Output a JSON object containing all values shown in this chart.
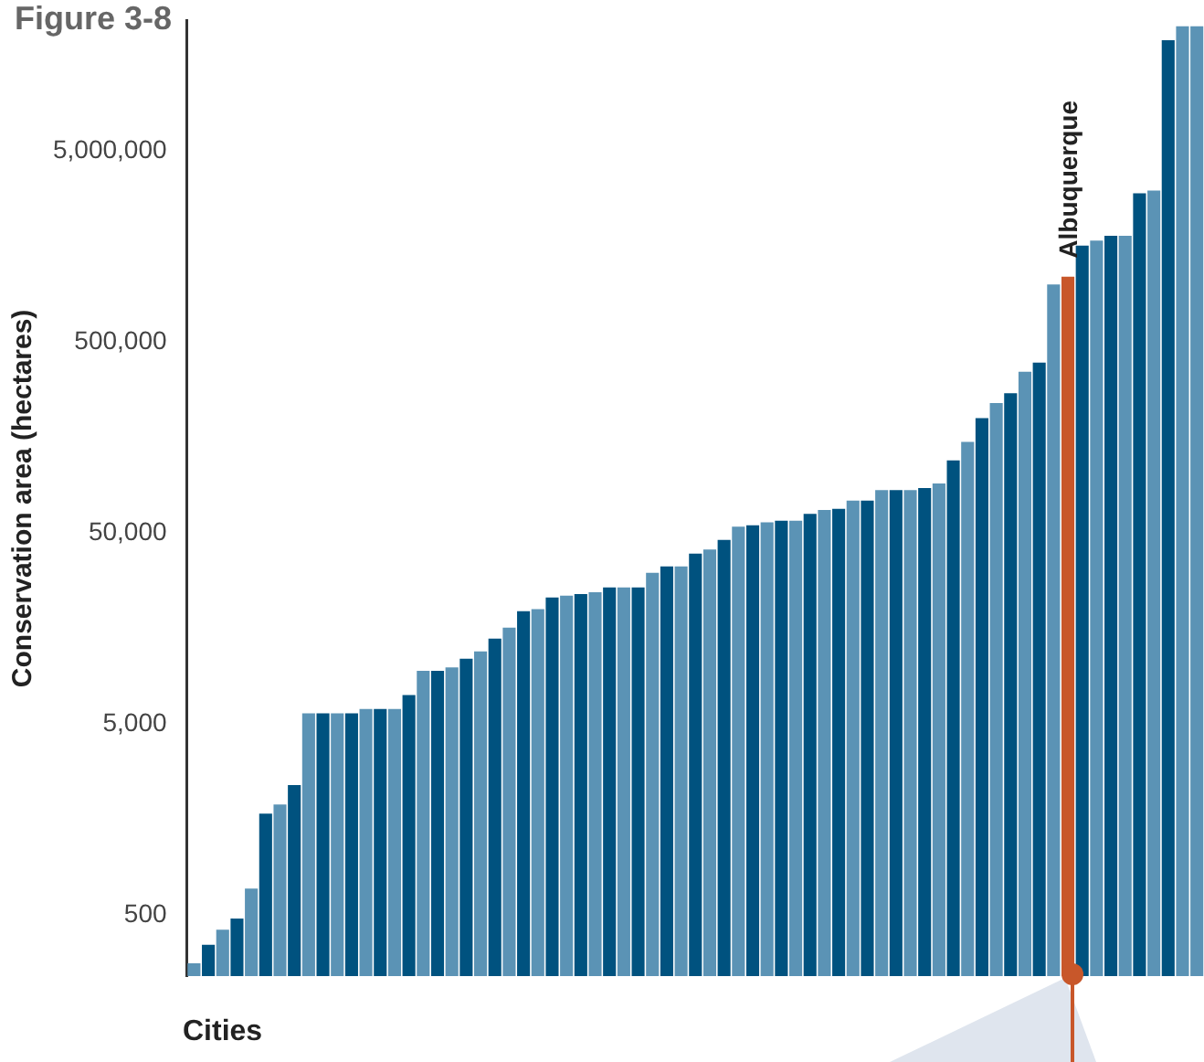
{
  "chart_data": {
    "type": "bar",
    "title": "Figure 3-8",
    "xlabel": "Cities",
    "ylabel": "Conservation area (hectares)",
    "log": "y",
    "grid": false,
    "legend": false,
    "categories": [
      null,
      null,
      null,
      null,
      null,
      null,
      null,
      null,
      null,
      null,
      null,
      null,
      null,
      null,
      null,
      null,
      null,
      null,
      null,
      null,
      null,
      null,
      null,
      null,
      null,
      null,
      null,
      null,
      null,
      null,
      null,
      null,
      null,
      null,
      null,
      null,
      null,
      null,
      null,
      null,
      null,
      null,
      null,
      null,
      null,
      null,
      null,
      null,
      null,
      null,
      null,
      null,
      null,
      null,
      null,
      null,
      null,
      null,
      null,
      null,
      null,
      "Albuquerque",
      null,
      null,
      null,
      null,
      null,
      null,
      null,
      null,
      null
    ],
    "values": [
      280,
      350,
      420,
      480,
      690,
      1700,
      1900,
      2400,
      5700,
      5700,
      5700,
      5700,
      6000,
      6000,
      6000,
      7100,
      9500,
      9500,
      9900,
      11000,
      12000,
      14000,
      16000,
      19500,
      20000,
      23000,
      23500,
      24000,
      24500,
      26000,
      26000,
      26000,
      31000,
      33500,
      33500,
      39000,
      41000,
      46000,
      54000,
      55000,
      57000,
      58000,
      58000,
      63000,
      66000,
      67000,
      74000,
      74000,
      84000,
      84000,
      84000,
      86000,
      91000,
      120000,
      150000,
      200000,
      240000,
      270000,
      350000,
      390000,
      1000000,
      1100000,
      1600000,
      1700000,
      1800000,
      1800000,
      3000000,
      3100000,
      19000000,
      22500000,
      22500000
    ],
    "colors": [
      "#5b93b5",
      "#00527f",
      "#5b93b5",
      "#00527f",
      "#5b93b5",
      "#00527f",
      "#5b93b5",
      "#00527f",
      "#5b93b5",
      "#00527f",
      "#5b93b5",
      "#00527f",
      "#5b93b5",
      "#00527f",
      "#5b93b5",
      "#00527f",
      "#5b93b5",
      "#00527f",
      "#5b93b5",
      "#00527f",
      "#5b93b5",
      "#00527f",
      "#5b93b5",
      "#00527f",
      "#5b93b5",
      "#00527f",
      "#5b93b5",
      "#00527f",
      "#5b93b5",
      "#00527f",
      "#5b93b5",
      "#00527f",
      "#5b93b5",
      "#00527f",
      "#5b93b5",
      "#00527f",
      "#5b93b5",
      "#00527f",
      "#5b93b5",
      "#00527f",
      "#5b93b5",
      "#00527f",
      "#5b93b5",
      "#00527f",
      "#5b93b5",
      "#00527f",
      "#5b93b5",
      "#00527f",
      "#5b93b5",
      "#00527f",
      "#5b93b5",
      "#00527f",
      "#5b93b5",
      "#00527f",
      "#5b93b5",
      "#00527f",
      "#5b93b5",
      "#00527f",
      "#5b93b5",
      "#00527f",
      "#5b93b5",
      "#c8572a",
      "#00527f",
      "#5b93b5",
      "#00527f",
      "#5b93b5",
      "#00527f",
      "#5b93b5",
      "#00527f",
      "#5b93b5",
      "#5b93b5"
    ],
    "ylim": [
      240,
      24000000
    ],
    "yticks": [
      500,
      {
        "value": 5000,
        "label": "5,000"
      },
      {
        "value": 50000,
        "label": "50,000"
      },
      {
        "value": 500000,
        "label": "500,000"
      },
      {
        "value": 5000000,
        "label": "5,000,000"
      }
    ]
  }
}
